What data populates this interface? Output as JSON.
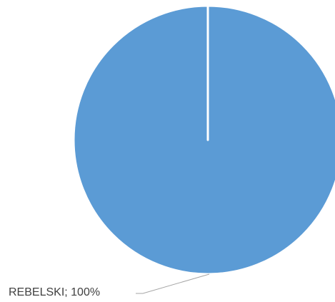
{
  "chart_data": {
    "type": "pie",
    "values": [
      100
    ],
    "value_labels": [
      "REBELSKI; 100%"
    ],
    "colors": [
      "#5b9bd5"
    ]
  }
}
